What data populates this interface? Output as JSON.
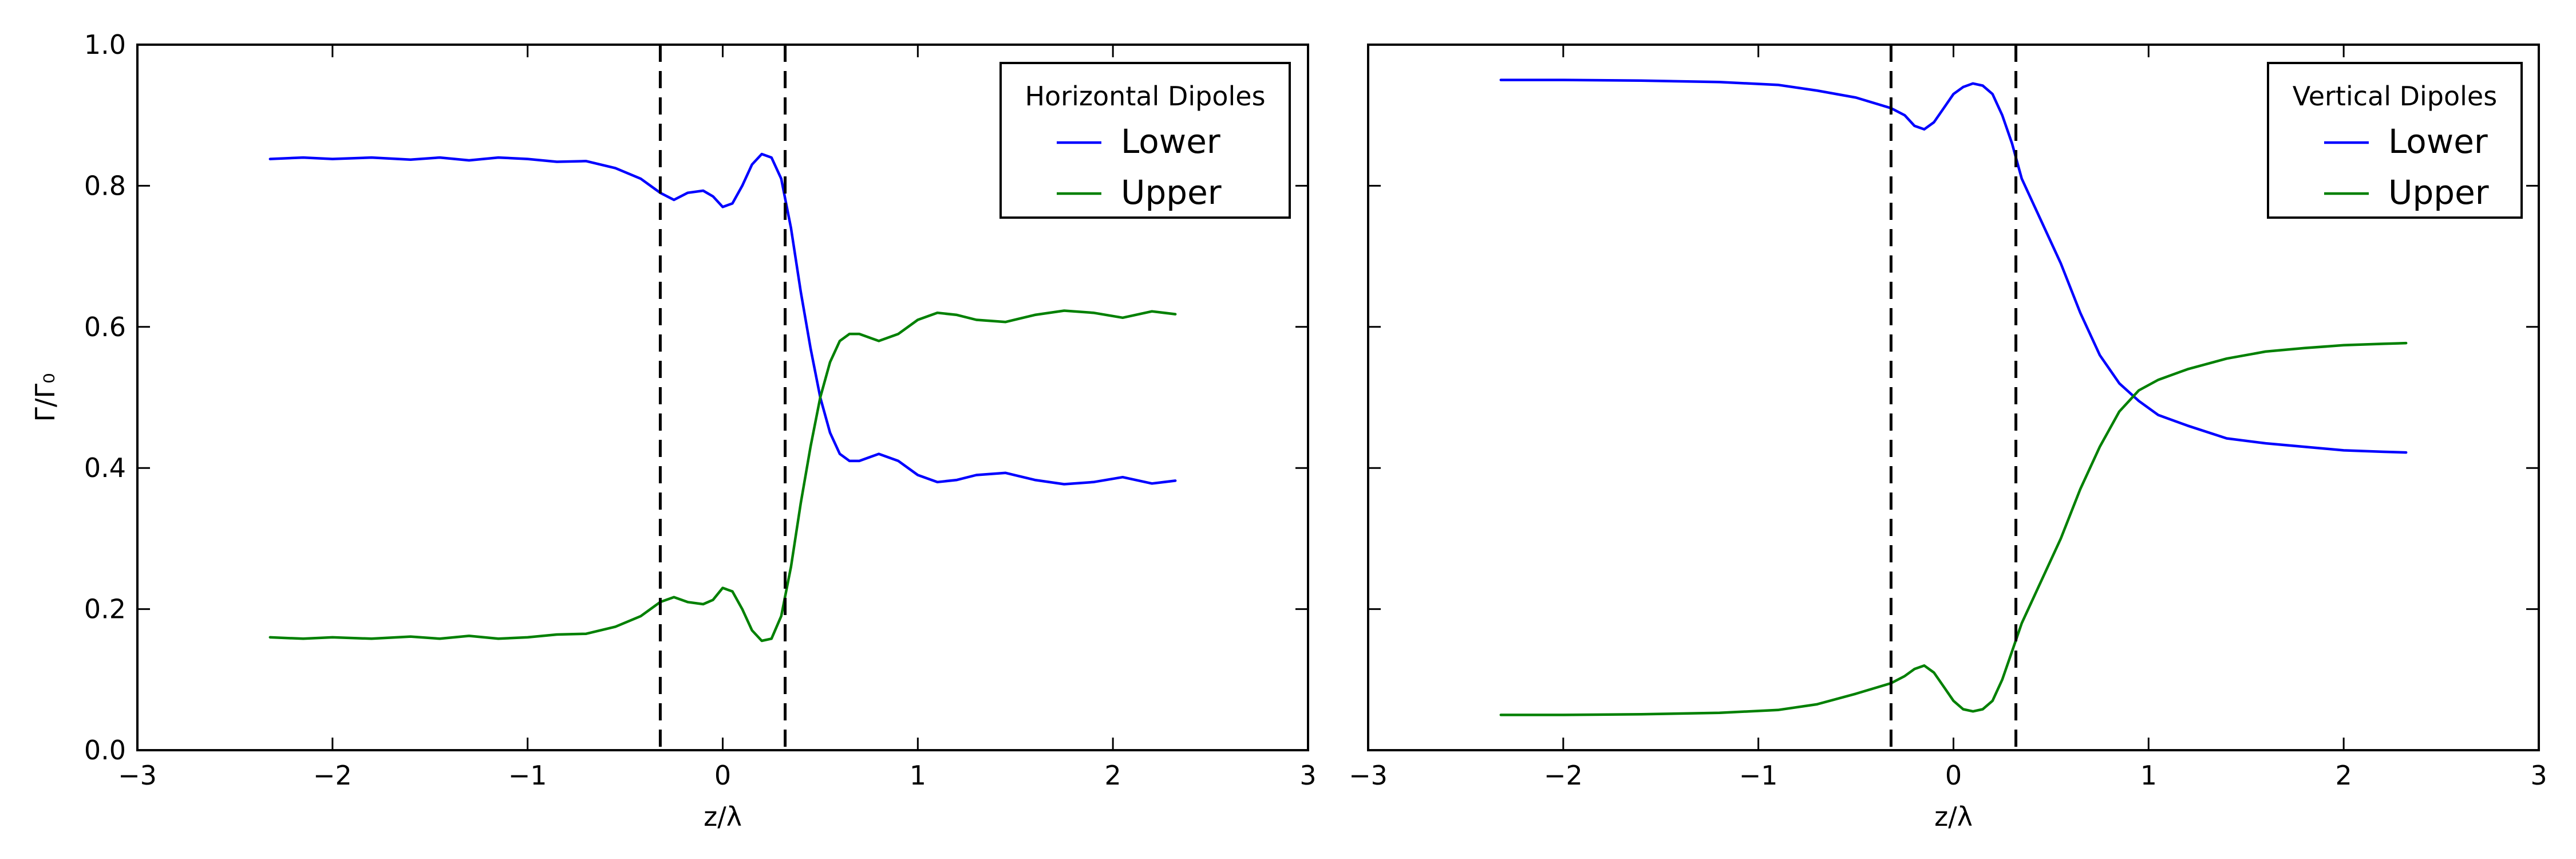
{
  "colors": {
    "lower": "#0000ff",
    "upper": "#008000",
    "axes": "#000000"
  },
  "chart_data": [
    {
      "type": "line",
      "title": "",
      "xlabel": "z/λ",
      "ylabel": "Γ/Γ₀",
      "xlim": [
        -3,
        3
      ],
      "ylim": [
        0.0,
        1.0
      ],
      "x_ticks": [
        -3,
        -2,
        -1,
        0,
        1,
        2,
        3
      ],
      "x_tick_labels": [
        "−3",
        "−2",
        "−1",
        "0",
        "1",
        "2",
        "3"
      ],
      "y_ticks": [
        0.0,
        0.2,
        0.4,
        0.6,
        0.8,
        1.0
      ],
      "y_tick_labels": [
        "0.0",
        "0.2",
        "0.4",
        "0.6",
        "0.8",
        "1.0"
      ],
      "grid": false,
      "vertical_lines": [
        -0.32,
        0.32
      ],
      "legend": {
        "title": "Horizontal Dipoles",
        "placement": "top-right"
      },
      "series": [
        {
          "name": "Lower",
          "color": "#0000ff",
          "x": [
            -2.32,
            -2.15,
            -2.0,
            -1.8,
            -1.6,
            -1.45,
            -1.3,
            -1.15,
            -1.0,
            -0.85,
            -0.7,
            -0.55,
            -0.42,
            -0.32,
            -0.25,
            -0.18,
            -0.1,
            -0.05,
            0.0,
            0.05,
            0.1,
            0.15,
            0.2,
            0.25,
            0.3,
            0.35,
            0.4,
            0.45,
            0.5,
            0.55,
            0.6,
            0.65,
            0.7,
            0.75,
            0.8,
            0.9,
            1.0,
            1.1,
            1.2,
            1.3,
            1.45,
            1.6,
            1.75,
            1.9,
            2.05,
            2.2,
            2.32
          ],
          "y": [
            0.838,
            0.84,
            0.838,
            0.84,
            0.837,
            0.84,
            0.836,
            0.84,
            0.838,
            0.834,
            0.835,
            0.825,
            0.81,
            0.79,
            0.78,
            0.79,
            0.793,
            0.785,
            0.77,
            0.775,
            0.8,
            0.83,
            0.845,
            0.84,
            0.81,
            0.74,
            0.65,
            0.57,
            0.5,
            0.45,
            0.42,
            0.41,
            0.41,
            0.415,
            0.42,
            0.41,
            0.39,
            0.38,
            0.383,
            0.39,
            0.393,
            0.383,
            0.377,
            0.38,
            0.387,
            0.378,
            0.382
          ]
        },
        {
          "name": "Upper",
          "color": "#008000",
          "x": [
            -2.32,
            -2.15,
            -2.0,
            -1.8,
            -1.6,
            -1.45,
            -1.3,
            -1.15,
            -1.0,
            -0.85,
            -0.7,
            -0.55,
            -0.42,
            -0.32,
            -0.25,
            -0.18,
            -0.1,
            -0.05,
            0.0,
            0.05,
            0.1,
            0.15,
            0.2,
            0.25,
            0.3,
            0.35,
            0.4,
            0.45,
            0.5,
            0.55,
            0.6,
            0.65,
            0.7,
            0.75,
            0.8,
            0.9,
            1.0,
            1.1,
            1.2,
            1.3,
            1.45,
            1.6,
            1.75,
            1.9,
            2.05,
            2.2,
            2.32
          ],
          "y": [
            0.16,
            0.158,
            0.16,
            0.158,
            0.161,
            0.158,
            0.162,
            0.158,
            0.16,
            0.164,
            0.165,
            0.175,
            0.19,
            0.21,
            0.217,
            0.21,
            0.207,
            0.213,
            0.23,
            0.225,
            0.2,
            0.17,
            0.155,
            0.158,
            0.19,
            0.26,
            0.35,
            0.43,
            0.5,
            0.55,
            0.58,
            0.59,
            0.59,
            0.585,
            0.58,
            0.59,
            0.61,
            0.62,
            0.617,
            0.61,
            0.607,
            0.617,
            0.623,
            0.62,
            0.613,
            0.622,
            0.618
          ]
        }
      ]
    },
    {
      "type": "line",
      "title": "",
      "xlabel": "z/λ",
      "ylabel": "",
      "xlim": [
        -3,
        3
      ],
      "ylim": [
        0.0,
        1.0
      ],
      "x_ticks": [
        -3,
        -2,
        -1,
        0,
        1,
        2,
        3
      ],
      "x_tick_labels": [
        "−3",
        "−2",
        "−1",
        "0",
        "1",
        "2",
        "3"
      ],
      "y_ticks": [
        0.0,
        0.2,
        0.4,
        0.6,
        0.8,
        1.0
      ],
      "y_tick_labels": [],
      "grid": false,
      "vertical_lines": [
        -0.32,
        0.32
      ],
      "legend": {
        "title": "Vertical Dipoles",
        "placement": "top-right"
      },
      "series": [
        {
          "name": "Lower",
          "color": "#0000ff",
          "x": [
            -2.32,
            -2.0,
            -1.6,
            -1.2,
            -0.9,
            -0.7,
            -0.5,
            -0.32,
            -0.25,
            -0.2,
            -0.15,
            -0.1,
            -0.05,
            0.0,
            0.05,
            0.1,
            0.15,
            0.2,
            0.25,
            0.3,
            0.35,
            0.45,
            0.55,
            0.65,
            0.75,
            0.85,
            0.95,
            1.05,
            1.2,
            1.4,
            1.6,
            1.8,
            2.0,
            2.2,
            2.32
          ],
          "y": [
            0.95,
            0.95,
            0.949,
            0.947,
            0.943,
            0.935,
            0.925,
            0.91,
            0.9,
            0.885,
            0.88,
            0.89,
            0.91,
            0.93,
            0.94,
            0.945,
            0.942,
            0.93,
            0.9,
            0.86,
            0.81,
            0.75,
            0.69,
            0.62,
            0.56,
            0.52,
            0.495,
            0.475,
            0.46,
            0.442,
            0.435,
            0.43,
            0.425,
            0.423,
            0.422
          ]
        },
        {
          "name": "Upper",
          "color": "#008000",
          "x": [
            -2.32,
            -2.0,
            -1.6,
            -1.2,
            -0.9,
            -0.7,
            -0.5,
            -0.32,
            -0.25,
            -0.2,
            -0.15,
            -0.1,
            -0.05,
            0.0,
            0.05,
            0.1,
            0.15,
            0.2,
            0.25,
            0.3,
            0.35,
            0.45,
            0.55,
            0.65,
            0.75,
            0.85,
            0.95,
            1.05,
            1.2,
            1.4,
            1.6,
            1.8,
            2.0,
            2.2,
            2.32
          ],
          "y": [
            0.05,
            0.05,
            0.051,
            0.053,
            0.057,
            0.065,
            0.08,
            0.095,
            0.105,
            0.115,
            0.12,
            0.11,
            0.09,
            0.07,
            0.058,
            0.055,
            0.058,
            0.07,
            0.1,
            0.14,
            0.18,
            0.24,
            0.3,
            0.37,
            0.43,
            0.48,
            0.51,
            0.525,
            0.54,
            0.555,
            0.565,
            0.57,
            0.574,
            0.576,
            0.577
          ]
        }
      ]
    }
  ]
}
